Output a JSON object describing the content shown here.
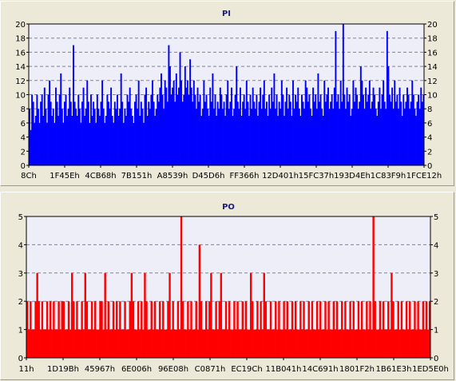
{
  "chart_data": [
    {
      "type": "bar",
      "title": "PI",
      "color": "#0000ff",
      "background": "#eeeef8",
      "ylim": [
        0,
        20
      ],
      "yticks": [
        "0",
        "2",
        "4",
        "6",
        "8",
        "10",
        "12",
        "14",
        "16",
        "18",
        "20"
      ],
      "xtick_labels": [
        "8Ch",
        "1F45Eh",
        "4CB68h",
        "7B151h",
        "A8539h",
        "D45D6h",
        "FF366h",
        "12D401h",
        "15FC37h",
        "193D4Eh",
        "1C83F9h",
        "1FCE12h"
      ],
      "grid": true,
      "values": [
        8,
        5,
        10,
        9,
        6,
        7,
        10,
        8,
        6,
        9,
        10,
        7,
        11,
        8,
        6,
        10,
        12,
        9,
        7,
        8,
        6,
        11,
        9,
        7,
        10,
        13,
        8,
        6,
        9,
        10,
        7,
        8,
        11,
        9,
        7,
        17,
        9,
        8,
        7,
        10,
        8,
        6,
        9,
        11,
        7,
        8,
        12,
        9,
        6,
        10,
        7,
        9,
        8,
        6,
        10,
        8,
        7,
        9,
        12,
        8,
        6,
        7,
        10,
        9,
        8,
        11,
        7,
        6,
        9,
        8,
        10,
        7,
        8,
        13,
        9,
        6,
        8,
        7,
        10,
        9,
        11,
        8,
        7,
        6,
        9,
        10,
        8,
        12,
        7,
        9,
        8,
        6,
        10,
        11,
        7,
        9,
        8,
        10,
        12,
        9,
        7,
        8,
        10,
        9,
        11,
        13,
        10,
        8,
        12,
        11,
        9,
        17,
        14,
        10,
        11,
        12,
        9,
        13,
        10,
        11,
        16,
        12,
        9,
        10,
        14,
        11,
        12,
        10,
        15,
        11,
        9,
        12,
        10,
        8,
        11,
        9,
        10,
        7,
        8,
        12,
        9,
        10,
        8,
        7,
        11,
        9,
        13,
        8,
        10,
        7,
        9,
        8,
        11,
        10,
        8,
        9,
        7,
        10,
        12,
        8,
        9,
        11,
        7,
        8,
        10,
        14,
        9,
        8,
        11,
        7,
        9,
        10,
        8,
        12,
        9,
        7,
        10,
        8,
        11,
        9,
        8,
        10,
        7,
        9,
        11,
        8,
        10,
        12,
        8,
        9,
        7,
        10,
        8,
        11,
        9,
        13,
        8,
        10,
        7,
        9,
        8,
        12,
        10,
        7,
        9,
        11,
        8,
        10,
        9,
        7,
        12,
        8,
        10,
        9,
        11,
        8,
        7,
        10,
        9,
        8,
        12,
        11,
        9,
        10,
        8,
        7,
        11,
        9,
        10,
        8,
        13,
        9,
        10,
        8,
        7,
        12,
        9,
        10,
        11,
        8,
        9,
        10,
        8,
        11,
        19,
        9,
        10,
        8,
        12,
        9,
        20,
        10,
        8,
        11,
        9,
        10,
        7,
        8,
        12,
        9,
        11,
        10,
        8,
        9,
        14,
        12,
        10,
        8,
        11,
        9,
        10,
        12,
        8,
        9,
        11,
        10,
        8,
        7,
        9,
        11,
        8,
        10,
        12,
        9,
        8,
        19,
        14,
        10,
        9,
        11,
        8,
        12,
        9,
        10,
        8,
        11,
        9,
        7,
        10,
        8,
        9,
        11,
        10,
        8,
        9,
        12,
        10,
        8,
        7,
        9,
        10,
        8,
        11,
        9,
        10
      ]
    },
    {
      "type": "bar",
      "title": "PO",
      "color": "#ff0000",
      "background": "#eeeef8",
      "ylim": [
        0,
        5
      ],
      "yticks": [
        "0",
        "1",
        "2",
        "3",
        "4",
        "5"
      ],
      "xtick_labels": [
        "11h",
        "1D19Bh",
        "45967h",
        "6E006h",
        "96E08h",
        "C0871h",
        "EC19Ch",
        "11B041h",
        "14C691h",
        "1801F2h",
        "1B61E3h",
        "1ED5E0h"
      ],
      "grid": true,
      "values": [
        2,
        1,
        2,
        1,
        1,
        2,
        3,
        2,
        1,
        2,
        1,
        1,
        2,
        1,
        2,
        1,
        2,
        1,
        1,
        2,
        1,
        2,
        2,
        1,
        1,
        2,
        1,
        3,
        2,
        1,
        2,
        1,
        1,
        2,
        1,
        3,
        2,
        1,
        1,
        2,
        1,
        2,
        1,
        1,
        2,
        2,
        1,
        3,
        1,
        2,
        1,
        1,
        2,
        1,
        2,
        1,
        2,
        1,
        1,
        2,
        1,
        1,
        2,
        3,
        2,
        1,
        1,
        2,
        1,
        2,
        1,
        3,
        2,
        1,
        1,
        2,
        1,
        2,
        1,
        1,
        2,
        1,
        2,
        1,
        1,
        2,
        3,
        1,
        2,
        1,
        1,
        2,
        1,
        5,
        2,
        1,
        1,
        2,
        1,
        2,
        1,
        1,
        2,
        1,
        4,
        2,
        1,
        1,
        2,
        1,
        2,
        3,
        1,
        1,
        2,
        1,
        2,
        3,
        1,
        1,
        2,
        1,
        2,
        1,
        1,
        2,
        1,
        2,
        1,
        1,
        2,
        1,
        2,
        1,
        1,
        3,
        2,
        1,
        1,
        2,
        1,
        2,
        1,
        3,
        2,
        1,
        1,
        2,
        1,
        1,
        2,
        1,
        2,
        1,
        1,
        2,
        1,
        2,
        1,
        1,
        2,
        1,
        2,
        1,
        1,
        2,
        1,
        2,
        1,
        1,
        2,
        1,
        2,
        1,
        1,
        2,
        1,
        2,
        1,
        1,
        2,
        1,
        2,
        1,
        1,
        2,
        1,
        2,
        1,
        1,
        2,
        1,
        2,
        1,
        1,
        2,
        1,
        2,
        1,
        1,
        2,
        1,
        2,
        1,
        1,
        2,
        1,
        2,
        1,
        5,
        2,
        1,
        1,
        2,
        1,
        2,
        1,
        1,
        2,
        1,
        3,
        2,
        1,
        1,
        2,
        1,
        2,
        1,
        1,
        2,
        1,
        2,
        1,
        1,
        2,
        1,
        2,
        1,
        1,
        2,
        1,
        2,
        1,
        2
      ]
    }
  ]
}
